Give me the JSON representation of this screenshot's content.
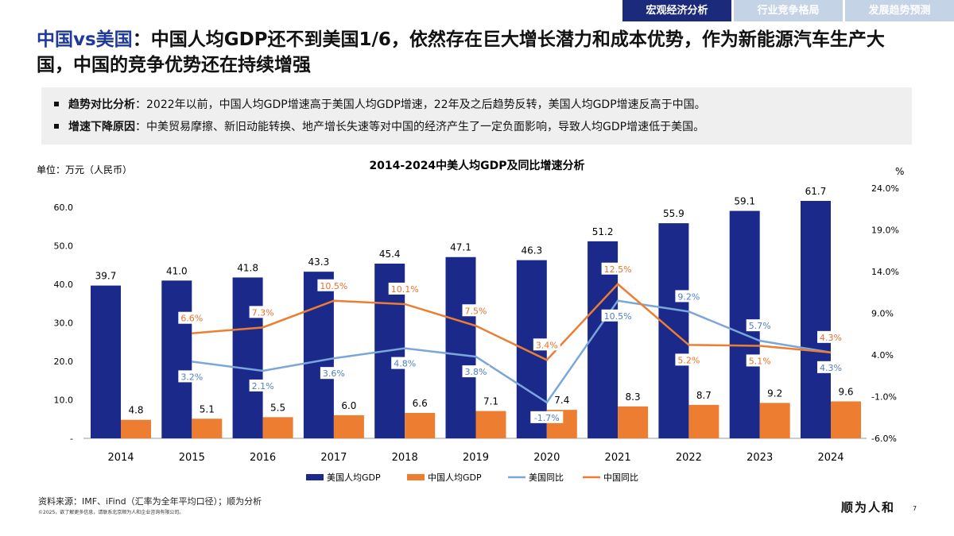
{
  "tabs": [
    {
      "label": "宏观经济分析",
      "active": true
    },
    {
      "label": "行业竞争格局",
      "active": false
    },
    {
      "label": "发展趋势预测",
      "active": false
    }
  ],
  "title": {
    "highlight": "中国vs美国",
    "rest": "：中国人均GDP还不到美国1/6，依然存在巨大增长潜力和成本优势，作为新能源汽车生产大国，中国的竞争优势还在持续增强"
  },
  "bullets": [
    {
      "label": "趋势对比分析",
      "text": "：2022年以前，中国人均GDP增速高于美国人均GDP增速，22年及之后趋势反转，美国人均GDP增速反高于中国。"
    },
    {
      "label": "增速下降原因",
      "text": "：中美贸易摩擦、新旧动能转换、地产增长失速等对中国的经济产生了一定负面影响，导致人均GDP增速低于美国。"
    }
  ],
  "chart_data": {
    "type": "bar+line",
    "title": "2014-2024中美人均GDP及同比增速分析",
    "ylabel_left": "单位：万元（人民币）",
    "ylabel_right": "%",
    "categories": [
      "2014",
      "2015",
      "2016",
      "2017",
      "2018",
      "2019",
      "2020",
      "2021",
      "2022",
      "2023",
      "2024"
    ],
    "ylim_left": [
      0,
      65
    ],
    "yticks_left": [
      "-",
      "10.0",
      "20.0",
      "30.0",
      "40.0",
      "50.0",
      "60.0"
    ],
    "ylim_right": [
      -6,
      24
    ],
    "yticks_right": [
      "-6.0%",
      "-1.0%",
      "4.0%",
      "9.0%",
      "14.0%",
      "19.0%",
      "24.0%"
    ],
    "series": [
      {
        "name": "美国人均GDP",
        "type": "bar",
        "color": "#1b2a8a",
        "values": [
          39.7,
          41.0,
          41.8,
          43.3,
          45.4,
          47.1,
          46.3,
          51.2,
          55.9,
          59.1,
          61.7
        ],
        "labels": [
          "39.7",
          "41.0",
          "41.8",
          "43.3",
          "45.4",
          "47.1",
          "46.3",
          "51.2",
          "55.9",
          "59.1",
          "61.7"
        ]
      },
      {
        "name": "中国人均GDP",
        "type": "bar",
        "color": "#ed7d31",
        "values": [
          4.8,
          5.1,
          5.5,
          6.0,
          6.6,
          7.1,
          7.4,
          8.3,
          8.7,
          9.2,
          9.6
        ],
        "labels": [
          "4.8",
          "5.1",
          "5.5",
          "6.0",
          "6.6",
          "7.1",
          "7.4",
          "8.3",
          "8.7",
          "9.2",
          "9.6"
        ]
      },
      {
        "name": "美国同比",
        "type": "line",
        "axis": "right",
        "color": "#7aa6da",
        "values": [
          null,
          3.2,
          2.1,
          3.6,
          4.8,
          3.8,
          -1.7,
          10.5,
          9.2,
          5.7,
          4.3
        ],
        "labels": [
          "",
          "3.2%",
          "2.1%",
          "3.6%",
          "4.8%",
          "3.8%",
          "-1.7%",
          "10.5%",
          "9.2%",
          "5.7%",
          "4.3%"
        ]
      },
      {
        "name": "中国同比",
        "type": "line",
        "axis": "right",
        "color": "#ed7d31",
        "values": [
          null,
          6.6,
          7.3,
          10.5,
          10.1,
          7.5,
          3.4,
          12.5,
          5.2,
          5.1,
          4.3
        ],
        "labels": [
          "",
          "6.6%",
          "7.3%",
          "10.5%",
          "10.1%",
          "7.5%",
          "3.4%",
          "12.5%",
          "5.2%",
          "5.1%",
          "4.3%"
        ]
      }
    ],
    "legend": "bottom",
    "grid": false
  },
  "footer": {
    "source": "资料来源：IMF、iFind（汇率为全年平均口径）；顺为分析",
    "copyright": "©2025，欲了解更多信息，请联系北京顺为人和企业咨询有限公司。",
    "logo": "顺为人和",
    "page": "7"
  }
}
